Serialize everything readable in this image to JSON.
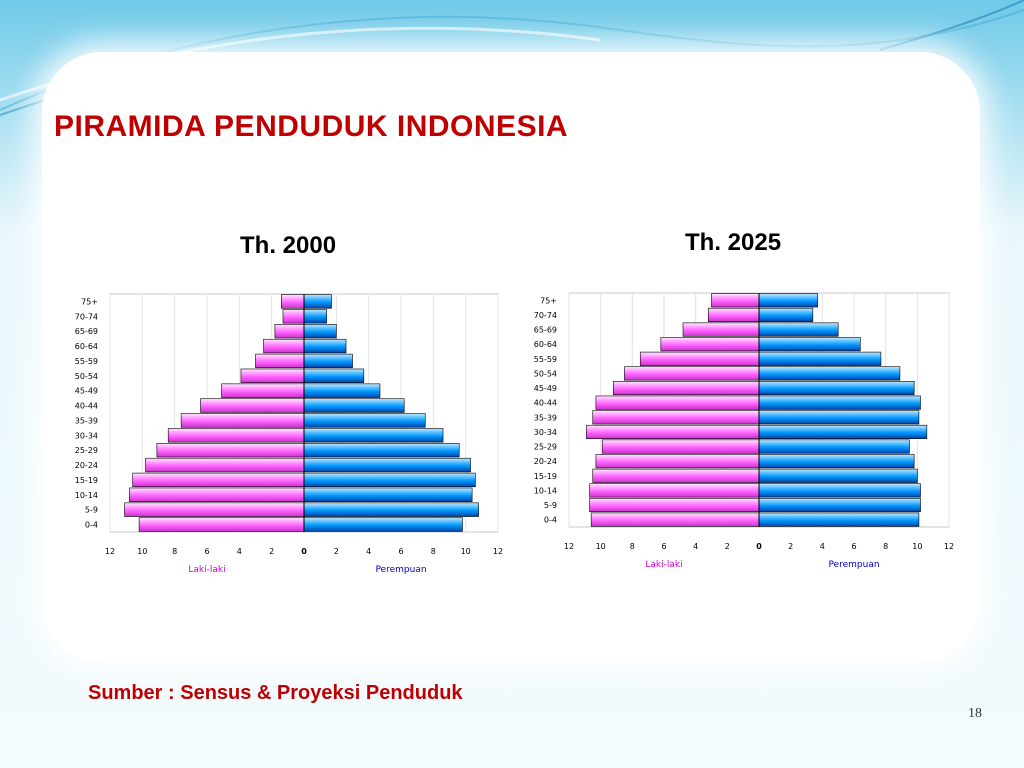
{
  "slide": {
    "title": "PIRAMIDA PENDUDUK INDONESIA",
    "source": "Sumber : Sensus & Proyeksi Penduduk",
    "page_number": "18"
  },
  "colors": {
    "title": "#c00000",
    "male_bar": "#ff66ff",
    "female_bar": "#0099ff"
  },
  "chart_data": [
    {
      "type": "bar",
      "title": "Th. 2000",
      "orientation": "horizontal-pyramid",
      "categories": [
        "0-4",
        "5-9",
        "10-14",
        "15-19",
        "20-24",
        "25-29",
        "30-34",
        "35-39",
        "40-44",
        "45-49",
        "50-54",
        "55-59",
        "60-64",
        "65-69",
        "70-74",
        "75+"
      ],
      "series": [
        {
          "name": "Laki-laki",
          "values": [
            10.2,
            11.1,
            10.8,
            10.6,
            9.8,
            9.1,
            8.4,
            7.6,
            6.4,
            5.1,
            3.9,
            3.0,
            2.5,
            1.8,
            1.3,
            1.4
          ]
        },
        {
          "name": "Perempuan",
          "values": [
            9.8,
            10.8,
            10.4,
            10.6,
            10.3,
            9.6,
            8.6,
            7.5,
            6.2,
            4.7,
            3.7,
            3.0,
            2.6,
            2.0,
            1.4,
            1.7
          ]
        }
      ],
      "xlim": [
        -12,
        12
      ],
      "xticks": [
        "12",
        "10",
        "8",
        "6",
        "4",
        "2",
        "0",
        "2",
        "4",
        "6",
        "8",
        "10",
        "12"
      ],
      "grid": true,
      "legend_position": "bottom"
    },
    {
      "type": "bar",
      "title": "Th. 2025",
      "orientation": "horizontal-pyramid",
      "categories": [
        "0-4",
        "5-9",
        "10-14",
        "15-19",
        "20-24",
        "25-29",
        "30-34",
        "35-39",
        "40-44",
        "45-49",
        "50-54",
        "55-59",
        "60-64",
        "65-69",
        "70-74",
        "75+"
      ],
      "series": [
        {
          "name": "Laki-laki",
          "values": [
            10.6,
            10.7,
            10.7,
            10.5,
            10.3,
            9.9,
            10.9,
            10.5,
            10.3,
            9.2,
            8.5,
            7.5,
            6.2,
            4.8,
            3.2,
            3.0
          ]
        },
        {
          "name": "Perempuan",
          "values": [
            10.1,
            10.2,
            10.2,
            10.0,
            9.8,
            9.5,
            10.6,
            10.1,
            10.2,
            9.8,
            8.9,
            7.7,
            6.4,
            5.0,
            3.4,
            3.7
          ]
        }
      ],
      "xlim": [
        -12,
        12
      ],
      "xticks": [
        "12",
        "10",
        "8",
        "6",
        "4",
        "2",
        "0",
        "2",
        "4",
        "6",
        "8",
        "10",
        "12"
      ],
      "grid": true,
      "legend_position": "bottom"
    }
  ]
}
